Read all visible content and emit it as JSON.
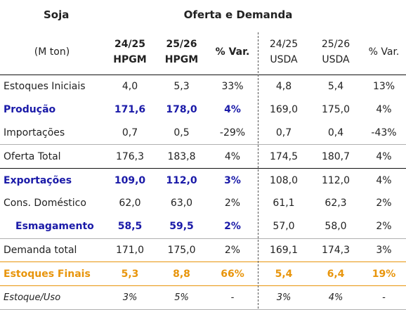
{
  "header": {
    "title_left": "Soja",
    "title_right": "Oferta e Demanda",
    "unit": "(M ton)",
    "columns": [
      {
        "line1": "24/25",
        "line2": "HPGM"
      },
      {
        "line1": "25/26",
        "line2": "HPGM"
      },
      {
        "line1": "% Var.",
        "line2": ""
      },
      {
        "line1": "24/25",
        "line2": "USDA"
      },
      {
        "line1": "25/26",
        "line2": "USDA"
      },
      {
        "line1": "% Var.",
        "line2": ""
      }
    ]
  },
  "rows": [
    {
      "label": "Estoques Iniciais",
      "values": [
        "4,0",
        "5,3",
        "33%",
        "4,8",
        "5,4",
        "13%"
      ]
    },
    {
      "label": "Produção",
      "values": [
        "171,6",
        "178,0",
        "4%",
        "169,0",
        "175,0",
        "4%"
      ]
    },
    {
      "label": "Importações",
      "values": [
        "0,7",
        "0,5",
        "-29%",
        "0,7",
        "0,4",
        "-43%"
      ]
    },
    {
      "label": "Oferta Total",
      "values": [
        "176,3",
        "183,8",
        "4%",
        "174,5",
        "180,7",
        "4%"
      ]
    },
    {
      "label": "Exportações",
      "values": [
        "109,0",
        "112,0",
        "3%",
        "108,0",
        "112,0",
        "4%"
      ]
    },
    {
      "label": "Cons. Doméstico",
      "values": [
        "62,0",
        "63,0",
        "2%",
        "61,1",
        "62,3",
        "2%"
      ]
    },
    {
      "label": "Esmagamento",
      "values": [
        "58,5",
        "59,5",
        "2%",
        "57,0",
        "58,0",
        "2%"
      ]
    },
    {
      "label": "Demanda total",
      "values": [
        "171,0",
        "175,0",
        "2%",
        "169,1",
        "174,3",
        "3%"
      ]
    },
    {
      "label": "Estoques Finais",
      "values": [
        "5,3",
        "8,8",
        "66%",
        "5,4",
        "6,4",
        "19%"
      ]
    },
    {
      "label": "Estoque/Uso",
      "values": [
        "3%",
        "5%",
        "-",
        "3%",
        "4%",
        "-"
      ]
    }
  ],
  "colors": {
    "highlight_blue": "#1a1aa8",
    "highlight_orange": "#e8950c"
  }
}
